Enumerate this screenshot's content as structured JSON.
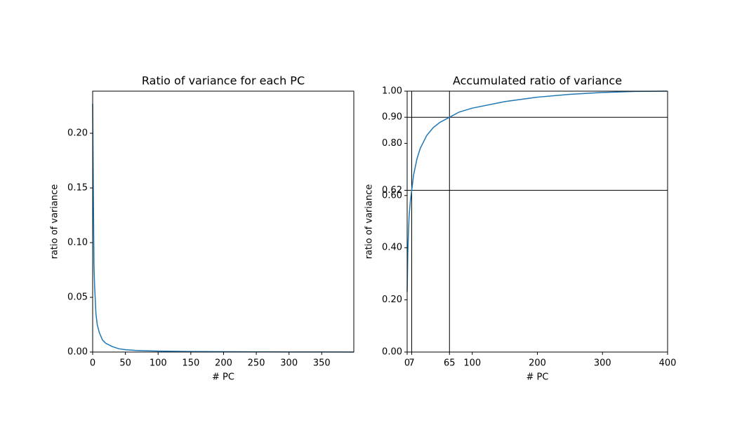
{
  "chart_data": [
    {
      "type": "line",
      "title": "Ratio of variance for each PC",
      "xlabel": "# PC",
      "ylabel": "ratio of variance",
      "x": [
        0,
        1,
        2,
        3,
        5,
        7,
        10,
        15,
        20,
        30,
        40,
        50,
        65,
        80,
        100,
        150,
        200,
        250,
        300,
        350,
        399
      ],
      "series": [
        {
          "name": "ratio of variance",
          "color": "#1f77b4",
          "values": [
            0.227,
            0.15,
            0.08,
            0.06,
            0.035,
            0.025,
            0.018,
            0.011,
            0.008,
            0.005,
            0.003,
            0.0022,
            0.0015,
            0.0012,
            0.0009,
            0.0005,
            0.0003,
            0.0002,
            0.0001,
            5e-05,
            2e-05
          ]
        }
      ],
      "xlim": [
        0,
        399
      ],
      "xticks": [
        0,
        50,
        100,
        150,
        200,
        250,
        300,
        350
      ],
      "ylim": [
        0,
        0.2385
      ],
      "yticks": [
        {
          "value": 0,
          "label": "0.00"
        },
        {
          "value": 0.05,
          "label": "0.05"
        },
        {
          "value": 0.1,
          "label": "0.10"
        },
        {
          "value": 0.15,
          "label": "0.15"
        },
        {
          "value": 0.2,
          "label": "0.20"
        }
      ]
    },
    {
      "type": "line",
      "title": "Accumulated ratio of variance",
      "xlabel": "# PC",
      "ylabel": "ratio of variance",
      "x": [
        0,
        1,
        2,
        3,
        5,
        7,
        10,
        15,
        20,
        30,
        40,
        50,
        65,
        80,
        100,
        150,
        200,
        250,
        300,
        350,
        399
      ],
      "series": [
        {
          "name": "accumulated ratio of variance",
          "color": "#1f77b4",
          "values": [
            0.23,
            0.38,
            0.46,
            0.52,
            0.58,
            0.62,
            0.68,
            0.74,
            0.78,
            0.83,
            0.86,
            0.88,
            0.9,
            0.92,
            0.935,
            0.96,
            0.977,
            0.988,
            0.995,
            0.999,
            1.0
          ]
        }
      ],
      "xlim": [
        0,
        400
      ],
      "xticks": [
        0,
        7,
        65,
        100,
        200,
        300,
        400
      ],
      "ylim": [
        0,
        1
      ],
      "yticks": [
        {
          "value": 0,
          "label": "0.00"
        },
        {
          "value": 0.2,
          "label": "0.20"
        },
        {
          "value": 0.4,
          "label": "0.40"
        },
        {
          "value": 0.6,
          "label": "0.60"
        },
        {
          "value": 0.62,
          "label": "0.62"
        },
        {
          "value": 0.8,
          "label": "0.80"
        },
        {
          "value": 0.9,
          "label": "0.90"
        },
        {
          "value": 1,
          "label": "1.00"
        }
      ],
      "hlines": [
        0.62,
        0.9
      ],
      "vlines": [
        7,
        65
      ]
    }
  ]
}
